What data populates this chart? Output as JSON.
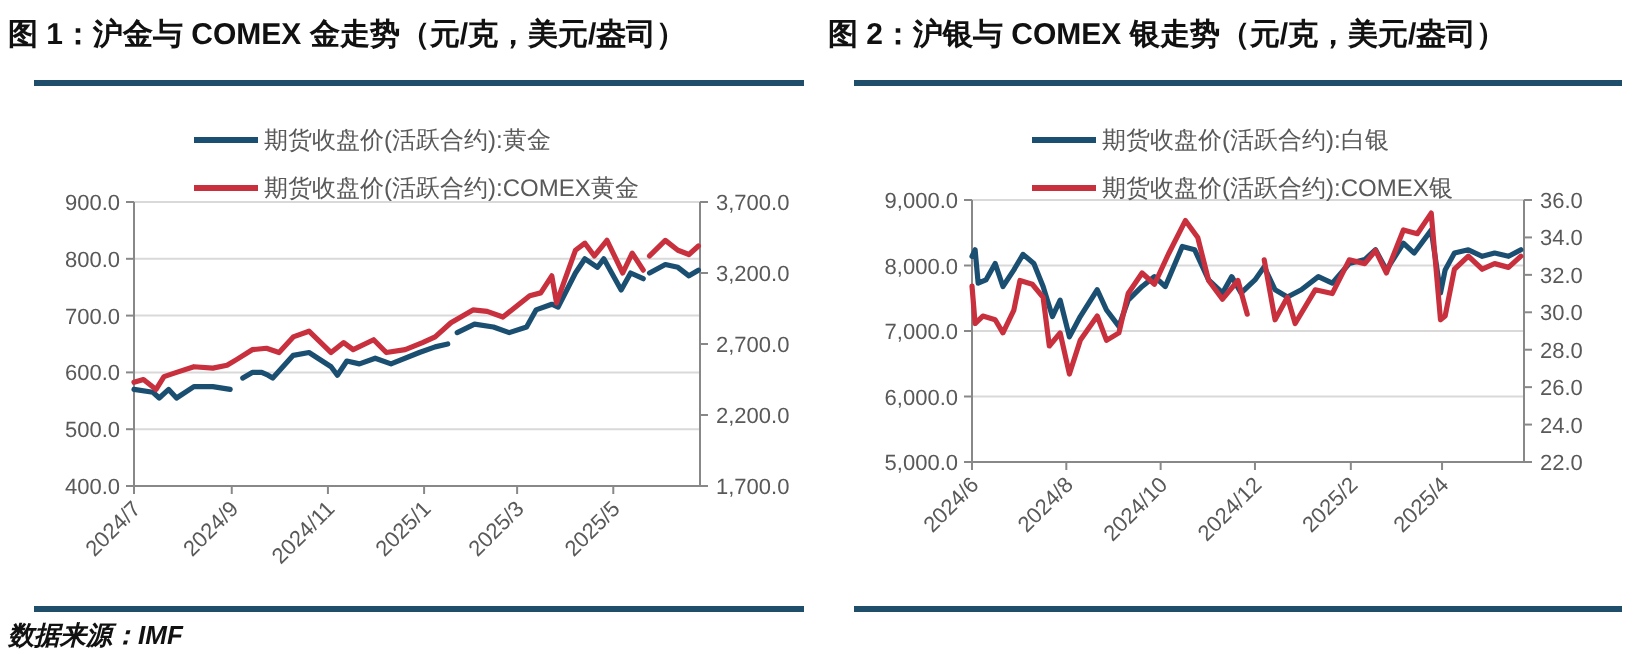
{
  "chart_data": [
    {
      "type": "line",
      "title": "图 1：沪金与 COMEX 金走势（元/克，美元/盎司）",
      "legend": "top",
      "grid": "y",
      "xlim": [
        "2024-07-01",
        "2025-06-25"
      ],
      "xticks": [
        {
          "value": "2024-07",
          "label": "2024/7"
        },
        {
          "value": "2024-09",
          "label": "2024/9"
        },
        {
          "value": "2024-11",
          "label": "2024/11"
        },
        {
          "value": "2025-01",
          "label": "2025/1"
        },
        {
          "value": "2025-03",
          "label": "2025/3"
        },
        {
          "value": "2025-05",
          "label": "2025/5"
        }
      ],
      "ylim": [
        400,
        900
      ],
      "yticks": [
        {
          "value": 400,
          "label": "400.0"
        },
        {
          "value": 500,
          "label": "500.0"
        },
        {
          "value": 600,
          "label": "600.0"
        },
        {
          "value": 700,
          "label": "700.0"
        },
        {
          "value": 800,
          "label": "800.0"
        },
        {
          "value": 900,
          "label": "900.0"
        }
      ],
      "y2lim": [
        1700,
        3700
      ],
      "y2ticks": [
        {
          "value": 1700,
          "label": "1,700.0"
        },
        {
          "value": 2200,
          "label": "2,200.0"
        },
        {
          "value": 2700,
          "label": "2,700.0"
        },
        {
          "value": 3200,
          "label": "3,200.0"
        },
        {
          "value": 3700,
          "label": "3,700.0"
        }
      ],
      "annotations": [
        "数据来源：IMF"
      ],
      "series": [
        {
          "name": "期货收盘价(活跃合约):黄金",
          "color": "#1b4f72",
          "x": [
            "2024-07-01",
            "2024-07-13",
            "2024-07-17",
            "2024-07-23",
            "2024-07-28",
            "2024-08-08",
            "2024-08-20",
            "2024-08-31",
            "2024-09-04",
            "2024-09-08",
            "2024-09-14",
            "2024-09-20",
            "2024-09-24",
            "2024-09-27",
            "2024-10-10",
            "2024-10-20",
            "2024-11-03",
            "2024-11-07",
            "2024-11-13",
            "2024-11-21",
            "2024-12-01",
            "2024-12-11",
            "2024-12-29",
            "2025-01-08",
            "2025-01-16",
            "2025-01-19",
            "2025-01-22",
            "2025-02-02",
            "2025-02-14",
            "2025-02-24",
            "2025-03-07",
            "2025-03-13",
            "2025-03-23",
            "2025-03-27",
            "2025-04-07",
            "2025-04-13",
            "2025-04-21",
            "2025-04-25",
            "2025-04-30",
            "2025-05-06",
            "2025-05-12",
            "2025-05-20",
            "2025-05-22",
            "2025-05-24",
            "2025-06-03",
            "2025-06-11",
            "2025-06-18",
            "2025-06-24"
          ],
          "values": [
            570,
            565,
            555,
            570,
            555,
            575,
            575,
            570,
            null,
            590,
            600,
            600,
            595,
            590,
            630,
            635,
            610,
            595,
            620,
            615,
            625,
            615,
            635,
            645,
            650,
            null,
            670,
            685,
            680,
            670,
            680,
            710,
            720,
            715,
            775,
            800,
            785,
            800,
            775,
            745,
            775,
            765,
            null,
            775,
            790,
            785,
            770,
            780
          ]
        },
        {
          "name": "期货收盘价(活跃合约):COMEX黄金",
          "color": "#c9303e",
          "axis": "y2",
          "x": [
            "2024-07-01",
            "2024-07-07",
            "2024-07-15",
            "2024-07-20",
            "2024-07-28",
            "2024-08-08",
            "2024-08-20",
            "2024-08-29",
            "2024-09-04",
            "2024-09-14",
            "2024-09-23",
            "2024-10-01",
            "2024-10-10",
            "2024-10-20",
            "2024-11-03",
            "2024-11-11",
            "2024-11-17",
            "2024-11-30",
            "2024-12-08",
            "2024-12-20",
            "2024-12-31",
            "2025-01-08",
            "2025-01-18",
            "2025-02-01",
            "2025-02-10",
            "2025-02-20",
            "2025-03-01",
            "2025-03-09",
            "2025-03-16",
            "2025-03-23",
            "2025-03-26",
            "2025-04-07",
            "2025-04-13",
            "2025-04-19",
            "2025-04-27",
            "2025-05-07",
            "2025-05-13",
            "2025-05-20",
            "2025-05-22",
            "2025-05-24",
            "2025-06-03",
            "2025-06-11",
            "2025-06-18",
            "2025-06-24"
          ],
          "values": [
            2430,
            2450,
            2380,
            2470,
            2500,
            2540,
            2530,
            2550,
            2590,
            2660,
            2670,
            2640,
            2750,
            2790,
            2640,
            2710,
            2660,
            2730,
            2640,
            2660,
            2710,
            2750,
            2850,
            2940,
            2930,
            2890,
            2970,
            3040,
            3060,
            3180,
            2990,
            3360,
            3410,
            3320,
            3430,
            3200,
            3340,
            3220,
            null,
            3320,
            3430,
            3360,
            3330,
            3390
          ]
        }
      ]
    },
    {
      "type": "line",
      "title": "图 2：沪银与 COMEX 银走势（元/克，美元/盎司）",
      "legend": "top",
      "grid": "y",
      "xlim": [
        "2024-06-01",
        "2025-05-24"
      ],
      "xticks": [
        {
          "value": "2024-06",
          "label": "2024/6"
        },
        {
          "value": "2024-08",
          "label": "2024/8"
        },
        {
          "value": "2024-10",
          "label": "2024/10"
        },
        {
          "value": "2024-12",
          "label": "2024/12"
        },
        {
          "value": "2025-02",
          "label": "2025/2"
        },
        {
          "value": "2025-04",
          "label": "2025/4"
        }
      ],
      "ylim": [
        5000,
        9000
      ],
      "yticks": [
        {
          "value": 5000,
          "label": "5,000.0"
        },
        {
          "value": 6000,
          "label": "6,000.0"
        },
        {
          "value": 7000,
          "label": "7,000.0"
        },
        {
          "value": 8000,
          "label": "8,000.0"
        },
        {
          "value": 9000,
          "label": "9,000.0"
        }
      ],
      "y2lim": [
        22,
        36
      ],
      "y2ticks": [
        {
          "value": 22,
          "label": "22.0"
        },
        {
          "value": 24,
          "label": "24.0"
        },
        {
          "value": 26,
          "label": "26.0"
        },
        {
          "value": 28,
          "label": "28.0"
        },
        {
          "value": 30,
          "label": "30.0"
        },
        {
          "value": 32,
          "label": "32.0"
        },
        {
          "value": 34,
          "label": "34.0"
        },
        {
          "value": 36,
          "label": "36.0"
        }
      ],
      "series": [
        {
          "name": "期货收盘价(活跃合约):白银",
          "color": "#1b4f72",
          "x": [
            "2024-06-01",
            "2024-06-03",
            "2024-06-05",
            "2024-06-10",
            "2024-06-16",
            "2024-06-21",
            "2024-06-28",
            "2024-07-04",
            "2024-07-11",
            "2024-07-17",
            "2024-07-23",
            "2024-07-28",
            "2024-08-03",
            "2024-08-10",
            "2024-08-21",
            "2024-08-27",
            "2024-09-04",
            "2024-09-10",
            "2024-09-19",
            "2024-09-27",
            "2024-10-04",
            "2024-10-15",
            "2024-10-23",
            "2024-11-01",
            "2024-11-10",
            "2024-11-16",
            "2024-11-22",
            "2024-12-01",
            "2024-12-07",
            "2024-12-14",
            "2024-12-22",
            "2024-12-31",
            "2025-01-11",
            "2025-01-20",
            "2025-01-31",
            "2025-02-10",
            "2025-02-17",
            "2025-02-24",
            "2025-03-07",
            "2025-03-14",
            "2025-03-25",
            "2025-03-31",
            "2025-04-03",
            "2025-04-09",
            "2025-04-18",
            "2025-04-27",
            "2025-05-05",
            "2025-05-14",
            "2025-05-22"
          ],
          "values": [
            8140,
            8240,
            7730,
            7780,
            8030,
            7680,
            7930,
            8170,
            8030,
            7680,
            7220,
            7470,
            6910,
            7220,
            7630,
            7320,
            7070,
            7470,
            7680,
            7830,
            7680,
            8290,
            8240,
            7780,
            7580,
            7830,
            7580,
            7780,
            7980,
            7630,
            7520,
            7630,
            7830,
            7730,
            8030,
            8090,
            8240,
            7930,
            8340,
            8190,
            8540,
            7580,
            7930,
            8190,
            8240,
            8140,
            8190,
            8140,
            8240
          ]
        },
        {
          "name": "期货收盘价(活跃合约):COMEX银",
          "color": "#c9303e",
          "axis": "y2",
          "x": [
            "2024-06-01",
            "2024-06-03",
            "2024-06-08",
            "2024-06-16",
            "2024-06-21",
            "2024-06-28",
            "2024-07-02",
            "2024-07-10",
            "2024-07-17",
            "2024-07-21",
            "2024-07-28",
            "2024-08-03",
            "2024-08-10",
            "2024-08-21",
            "2024-08-27",
            "2024-09-04",
            "2024-09-10",
            "2024-09-19",
            "2024-09-27",
            "2024-10-06",
            "2024-10-17",
            "2024-10-25",
            "2024-11-01",
            "2024-11-10",
            "2024-11-20",
            "2024-11-26",
            "2024-12-01",
            "2024-12-07",
            "2024-12-14",
            "2024-12-22",
            "2024-12-27",
            "2025-01-09",
            "2025-01-20",
            "2025-01-31",
            "2025-02-10",
            "2025-02-17",
            "2025-02-24",
            "2025-03-07",
            "2025-03-16",
            "2025-03-25",
            "2025-03-31",
            "2025-04-03",
            "2025-04-09",
            "2025-04-18",
            "2025-04-27",
            "2025-05-05",
            "2025-05-14",
            "2025-05-22"
          ],
          "values": [
            31.4,
            29.4,
            29.8,
            29.6,
            28.9,
            30.1,
            31.7,
            31.5,
            30.8,
            28.2,
            28.9,
            26.7,
            28.5,
            29.8,
            28.5,
            28.9,
            31.0,
            32.1,
            31.5,
            33.1,
            34.9,
            34.0,
            31.7,
            30.7,
            31.7,
            29.9,
            null,
            32.8,
            29.6,
            30.8,
            29.4,
            31.2,
            31.0,
            32.8,
            32.6,
            33.3,
            32.1,
            34.4,
            34.2,
            35.3,
            29.6,
            29.8,
            32.3,
            33.0,
            32.3,
            32.6,
            32.4,
            33.0
          ]
        }
      ]
    }
  ]
}
